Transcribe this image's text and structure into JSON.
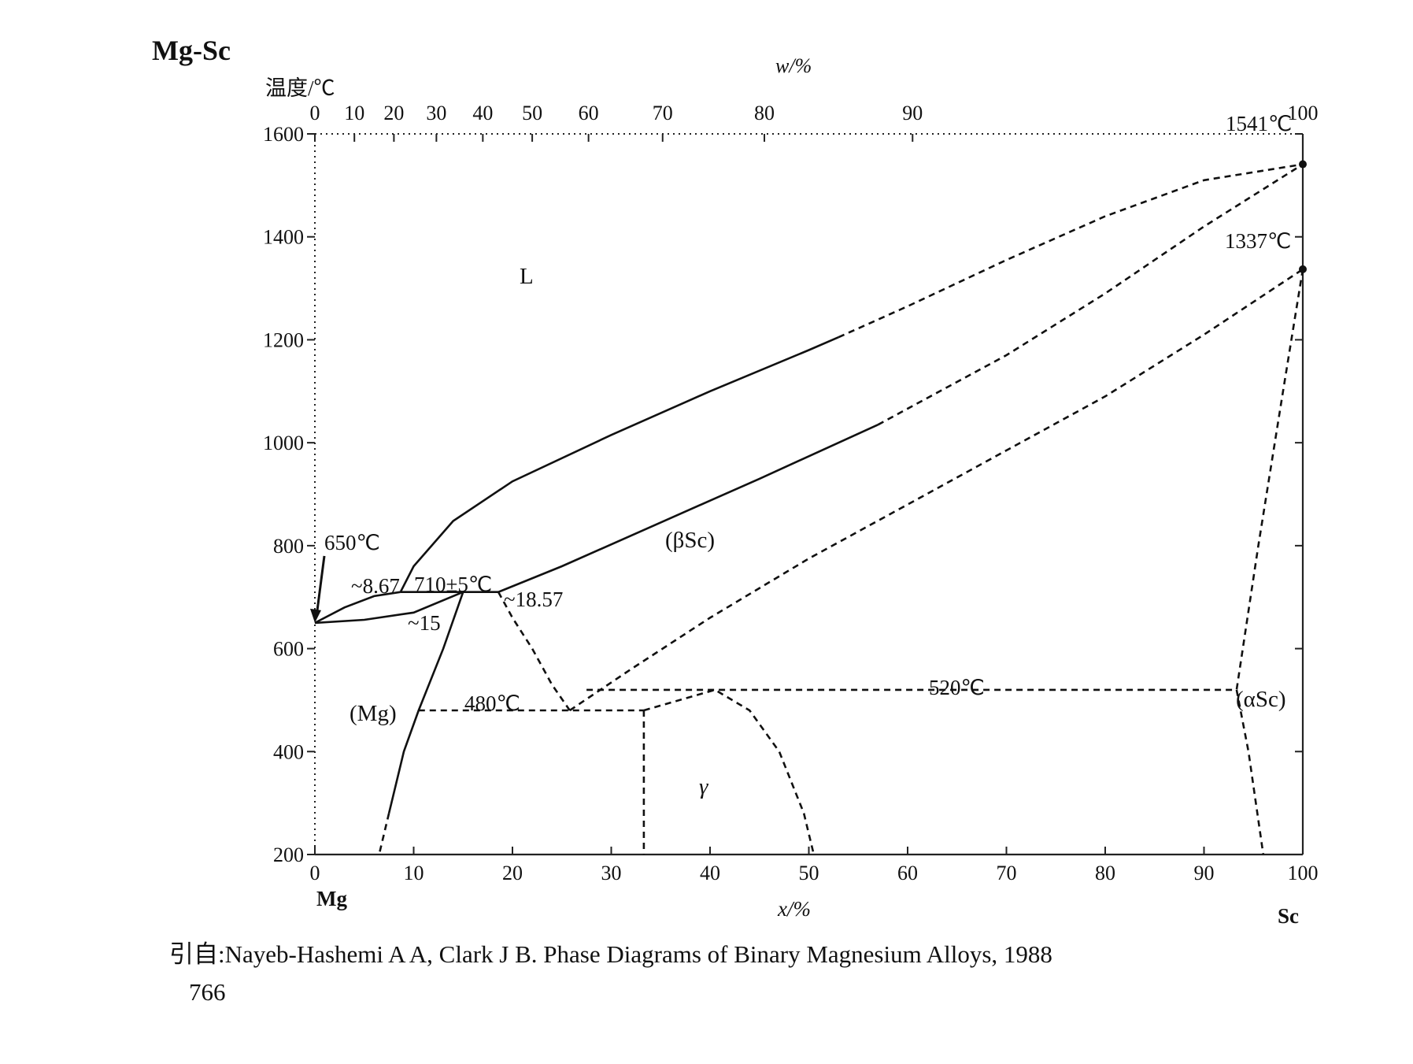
{
  "figure": {
    "system_label": "Mg-Sc",
    "temp_axis_label": "温度/℃",
    "bottom_axis_label": "x/%",
    "top_axis_label": "w/%",
    "left_element": "Mg",
    "right_element": "Sc",
    "source_citation": "引自:Nayeb-Hashemi A A, Clark J B. Phase Diagrams of Binary Magnesium Alloys, 1988",
    "page_number": "766"
  },
  "chart_data": {
    "type": "line",
    "title": "Mg-Sc",
    "xlabel": "x/%",
    "ylabel": "温度/℃",
    "top_xlabel": "w/%",
    "xlim": [
      0,
      100
    ],
    "ylim": [
      200,
      1600
    ],
    "grid": false,
    "x_ticks": [
      "0",
      "10",
      "20",
      "30",
      "40",
      "50",
      "60",
      "70",
      "80",
      "90",
      "100"
    ],
    "top_ticks": [
      "0",
      "10",
      "20",
      "30",
      "40",
      "50",
      "60",
      "70",
      "80",
      "90",
      "100"
    ],
    "y_ticks": [
      "200",
      "400",
      "600",
      "800",
      "1000",
      "1200",
      "1400",
      "1600"
    ],
    "phases": {
      "liquid": "L",
      "beta_sc": "(βSc)",
      "mg": "(Mg)",
      "gamma": "γ",
      "alpha_sc": "(αSc)"
    },
    "annotations": {
      "mg_melting": "650℃",
      "peritectic_temp": "710±5℃",
      "peritectic_left": "~8.67",
      "peritectic_mid": "~15",
      "peritectic_right": "~18.57",
      "eutectoid_temp": "480℃",
      "alpha_beta_temp": "520℃",
      "sc_melting": "1541℃",
      "sc_transition": "1337℃"
    },
    "series": [
      {
        "style": "solid",
        "x": [
          0,
          3,
          6,
          8.67
        ],
        "y": [
          650,
          680,
          702,
          710
        ]
      },
      {
        "style": "solid",
        "x": [
          8.67,
          10,
          14,
          20,
          30,
          40,
          50,
          53
        ],
        "y": [
          710,
          760,
          848,
          925,
          1015,
          1100,
          1180,
          1205
        ]
      },
      {
        "style": "dashed",
        "x": [
          53,
          60,
          70,
          80,
          90,
          100
        ],
        "y": [
          1205,
          1265,
          1355,
          1440,
          1510,
          1541
        ]
      },
      {
        "style": "solid",
        "x": [
          0,
          5,
          10,
          15
        ],
        "y": [
          650,
          656,
          670,
          710
        ]
      },
      {
        "style": "solid",
        "x": [
          8.67,
          18.57
        ],
        "y": [
          710,
          710
        ]
      },
      {
        "style": "solid",
        "x": [
          18.57,
          25,
          35,
          45,
          57
        ],
        "y": [
          710,
          760,
          845,
          930,
          1035
        ]
      },
      {
        "style": "dashed",
        "x": [
          57,
          70,
          80,
          90,
          100
        ],
        "y": [
          1035,
          1170,
          1290,
          1420,
          1541
        ]
      },
      {
        "style": "solid",
        "x": [
          15,
          13,
          10.5,
          9,
          7.5
        ],
        "y": [
          710,
          600,
          480,
          400,
          280
        ]
      },
      {
        "style": "dashed",
        "x": [
          7.5,
          6.5
        ],
        "y": [
          280,
          200
        ]
      },
      {
        "style": "dashed",
        "x": [
          18.57,
          20,
          22,
          24,
          25.8
        ],
        "y": [
          710,
          660,
          600,
          530,
          480
        ]
      },
      {
        "style": "dashed",
        "x": [
          10.5,
          25.8,
          33.3
        ],
        "y": [
          480,
          480,
          480
        ]
      },
      {
        "style": "dashed",
        "x": [
          25.8,
          32,
          40,
          50,
          60,
          70,
          80,
          90,
          100
        ],
        "y": [
          480,
          560,
          660,
          775,
          880,
          985,
          1090,
          1210,
          1337
        ]
      },
      {
        "style": "dashed",
        "x": [
          27.5,
          40.5,
          93.3
        ],
        "y": [
          520,
          520,
          520
        ]
      },
      {
        "style": "dashed",
        "x": [
          33.3,
          33.3
        ],
        "y": [
          480,
          200
        ]
      },
      {
        "style": "dashed",
        "x": [
          33.3,
          40.5,
          44,
          47,
          49.5,
          50.5
        ],
        "y": [
          480,
          520,
          480,
          400,
          280,
          200
        ]
      },
      {
        "style": "dashed",
        "x": [
          100,
          98,
          95.5,
          93.3
        ],
        "y": [
          1337,
          1100,
          800,
          520
        ]
      },
      {
        "style": "dashed",
        "x": [
          93.3,
          94.5,
          96
        ],
        "y": [
          520,
          400,
          200
        ]
      }
    ]
  }
}
